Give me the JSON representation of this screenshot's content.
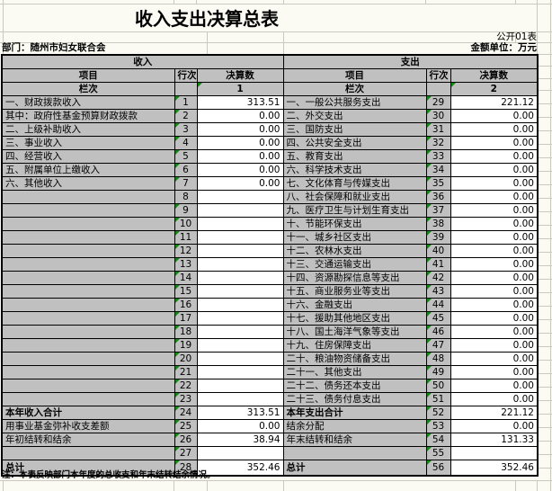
{
  "page": {
    "title": "收入支出决算总表",
    "doc_number": "公开01表",
    "department": "部门：随州市妇女联合会",
    "unit": "金额单位：万元",
    "note": "注：本表反映部门本年度的总收支和年末结转结余情况。"
  },
  "colors": {
    "cell_gray": "#c0c0c0",
    "grid": "#c9c9c0",
    "bg": "#fbfbf4",
    "tri": "#0a8f0a",
    "ink": "#000000"
  },
  "table": {
    "income_header": "收入",
    "expense_header": "支出",
    "col_item": "项目",
    "col_row_no": "行次",
    "col_amount": "决算数",
    "col_index_label": "栏次",
    "income_col_index": "1",
    "expense_col_index": "2",
    "rows": [
      {
        "income": {
          "item": "一、财政拨款收入",
          "align": "left",
          "bold": false,
          "row_no": "1",
          "triangle": true,
          "value": "313.51"
        },
        "expense": {
          "item": "一、一般公共服务支出",
          "align": "left",
          "bold": false,
          "row_no": "29",
          "triangle": true,
          "value": "221.12"
        }
      },
      {
        "income": {
          "item": "其中：政府性基金预算财政拨款",
          "align": "indent",
          "bold": false,
          "row_no": "2",
          "triangle": true,
          "value": "0.00"
        },
        "expense": {
          "item": "二、外交支出",
          "align": "left",
          "bold": false,
          "row_no": "30",
          "triangle": true,
          "value": "0.00"
        }
      },
      {
        "income": {
          "item": "二、上级补助收入",
          "align": "left",
          "bold": false,
          "row_no": "3",
          "triangle": true,
          "value": "0.00"
        },
        "expense": {
          "item": "三、国防支出",
          "align": "left",
          "bold": false,
          "row_no": "31",
          "triangle": true,
          "value": "0.00"
        }
      },
      {
        "income": {
          "item": "三、事业收入",
          "align": "left",
          "bold": false,
          "row_no": "4",
          "triangle": true,
          "value": "0.00"
        },
        "expense": {
          "item": "四、公共安全支出",
          "align": "left",
          "bold": false,
          "row_no": "32",
          "triangle": true,
          "value": "0.00"
        }
      },
      {
        "income": {
          "item": "四、经营收入",
          "align": "left",
          "bold": false,
          "row_no": "5",
          "triangle": true,
          "value": "0.00"
        },
        "expense": {
          "item": "五、教育支出",
          "align": "left",
          "bold": false,
          "row_no": "33",
          "triangle": true,
          "value": "0.00"
        }
      },
      {
        "income": {
          "item": "五、附属单位上缴收入",
          "align": "left",
          "bold": false,
          "row_no": "6",
          "triangle": true,
          "value": "0.00"
        },
        "expense": {
          "item": "六、科学技术支出",
          "align": "left",
          "bold": false,
          "row_no": "34",
          "triangle": true,
          "value": "0.00"
        }
      },
      {
        "income": {
          "item": "六、其他收入",
          "align": "left",
          "bold": false,
          "row_no": "7",
          "triangle": true,
          "value": "0.00"
        },
        "expense": {
          "item": "七、文化体育与传媒支出",
          "align": "left",
          "bold": false,
          "row_no": "35",
          "triangle": true,
          "value": "0.00"
        }
      },
      {
        "income": {
          "item": "",
          "align": "left",
          "bold": false,
          "row_no": "8",
          "triangle": false,
          "value": ""
        },
        "expense": {
          "item": "八、社会保障和就业支出",
          "align": "left",
          "bold": false,
          "row_no": "36",
          "triangle": true,
          "value": "0.00"
        }
      },
      {
        "income": {
          "item": "",
          "align": "left",
          "bold": false,
          "row_no": "9",
          "triangle": true,
          "value": ""
        },
        "expense": {
          "item": "九、医疗卫生与计划生育支出",
          "align": "left",
          "bold": false,
          "row_no": "37",
          "triangle": true,
          "value": "0.00"
        }
      },
      {
        "income": {
          "item": "",
          "align": "left",
          "bold": false,
          "row_no": "10",
          "triangle": true,
          "value": ""
        },
        "expense": {
          "item": "十、节能环保支出",
          "align": "left",
          "bold": false,
          "row_no": "38",
          "triangle": true,
          "value": "0.00"
        }
      },
      {
        "income": {
          "item": "",
          "align": "left",
          "bold": false,
          "row_no": "11",
          "triangle": true,
          "value": ""
        },
        "expense": {
          "item": "十一、城乡社区支出",
          "align": "left",
          "bold": false,
          "row_no": "39",
          "triangle": true,
          "value": "0.00"
        }
      },
      {
        "income": {
          "item": "",
          "align": "left",
          "bold": false,
          "row_no": "12",
          "triangle": true,
          "value": ""
        },
        "expense": {
          "item": "十二、农林水支出",
          "align": "left",
          "bold": false,
          "row_no": "40",
          "triangle": true,
          "value": "0.00"
        }
      },
      {
        "income": {
          "item": "",
          "align": "left",
          "bold": false,
          "row_no": "13",
          "triangle": true,
          "value": ""
        },
        "expense": {
          "item": "十三、交通运输支出",
          "align": "left",
          "bold": false,
          "row_no": "41",
          "triangle": true,
          "value": "0.00"
        }
      },
      {
        "income": {
          "item": "",
          "align": "left",
          "bold": false,
          "row_no": "14",
          "triangle": true,
          "value": ""
        },
        "expense": {
          "item": "十四、资源勘探信息等支出",
          "align": "left",
          "bold": false,
          "row_no": "42",
          "triangle": true,
          "value": "0.00"
        }
      },
      {
        "income": {
          "item": "",
          "align": "left",
          "bold": false,
          "row_no": "15",
          "triangle": true,
          "value": ""
        },
        "expense": {
          "item": "十五、商业服务业等支出",
          "align": "left",
          "bold": false,
          "row_no": "43",
          "triangle": true,
          "value": "0.00"
        }
      },
      {
        "income": {
          "item": "",
          "align": "left",
          "bold": false,
          "row_no": "16",
          "triangle": true,
          "value": ""
        },
        "expense": {
          "item": "十六、金融支出",
          "align": "left",
          "bold": false,
          "row_no": "44",
          "triangle": true,
          "value": "0.00"
        }
      },
      {
        "income": {
          "item": "",
          "align": "left",
          "bold": false,
          "row_no": "17",
          "triangle": true,
          "value": ""
        },
        "expense": {
          "item": "十七、援助其他地区支出",
          "align": "left",
          "bold": false,
          "row_no": "45",
          "triangle": true,
          "value": "0.00"
        }
      },
      {
        "income": {
          "item": "",
          "align": "left",
          "bold": false,
          "row_no": "18",
          "triangle": true,
          "value": ""
        },
        "expense": {
          "item": "十八、国土海洋气象等支出",
          "align": "left",
          "bold": false,
          "row_no": "46",
          "triangle": true,
          "value": "0.00"
        }
      },
      {
        "income": {
          "item": "",
          "align": "left",
          "bold": false,
          "row_no": "19",
          "triangle": true,
          "value": ""
        },
        "expense": {
          "item": "十九、住房保障支出",
          "align": "left",
          "bold": false,
          "row_no": "47",
          "triangle": true,
          "value": "0.00"
        }
      },
      {
        "income": {
          "item": "",
          "align": "left",
          "bold": false,
          "row_no": "20",
          "triangle": true,
          "value": ""
        },
        "expense": {
          "item": "二十、粮油物资储备支出",
          "align": "left",
          "bold": false,
          "row_no": "48",
          "triangle": true,
          "value": "0.00"
        }
      },
      {
        "income": {
          "item": "",
          "align": "left",
          "bold": false,
          "row_no": "21",
          "triangle": true,
          "value": ""
        },
        "expense": {
          "item": "二十一、其他支出",
          "align": "left",
          "bold": false,
          "row_no": "49",
          "triangle": true,
          "value": "0.00"
        }
      },
      {
        "income": {
          "item": "",
          "align": "left",
          "bold": false,
          "row_no": "22",
          "triangle": true,
          "value": ""
        },
        "expense": {
          "item": "二十二、债务还本支出",
          "align": "left",
          "bold": false,
          "row_no": "50",
          "triangle": true,
          "value": "0.00"
        }
      },
      {
        "income": {
          "item": "",
          "align": "left",
          "bold": false,
          "row_no": "23",
          "triangle": true,
          "value": ""
        },
        "expense": {
          "item": "二十三、债务付息支出",
          "align": "left",
          "bold": false,
          "row_no": "51",
          "triangle": true,
          "value": "0.00"
        }
      },
      {
        "income": {
          "item": "本年收入合计",
          "align": "center",
          "bold": true,
          "row_no": "24",
          "triangle": true,
          "value": "313.51"
        },
        "expense": {
          "item": "本年支出合计",
          "align": "center",
          "bold": true,
          "row_no": "52",
          "triangle": true,
          "value": "221.12"
        }
      },
      {
        "income": {
          "item": "用事业基金弥补收支差额",
          "align": "indent",
          "bold": false,
          "row_no": "25",
          "triangle": true,
          "value": "0.00"
        },
        "expense": {
          "item": "结余分配",
          "align": "indent",
          "bold": false,
          "row_no": "53",
          "triangle": true,
          "value": "0.00"
        }
      },
      {
        "income": {
          "item": "年初结转和结余",
          "align": "indent",
          "bold": false,
          "row_no": "26",
          "triangle": true,
          "value": "38.94"
        },
        "expense": {
          "item": "年末结转和结余",
          "align": "indent",
          "bold": false,
          "row_no": "54",
          "triangle": true,
          "value": "131.33"
        }
      },
      {
        "income": {
          "item": "",
          "align": "left",
          "bold": false,
          "row_no": "27",
          "triangle": true,
          "value": ""
        },
        "expense": {
          "item": "",
          "align": "left",
          "bold": false,
          "row_no": "55",
          "triangle": true,
          "value": ""
        }
      },
      {
        "income": {
          "item": "总计",
          "align": "center",
          "bold": true,
          "row_no": "28",
          "triangle": true,
          "value": "352.46"
        },
        "expense": {
          "item": "总计",
          "align": "center",
          "bold": true,
          "row_no": "56",
          "triangle": true,
          "value": "352.46"
        }
      }
    ]
  }
}
